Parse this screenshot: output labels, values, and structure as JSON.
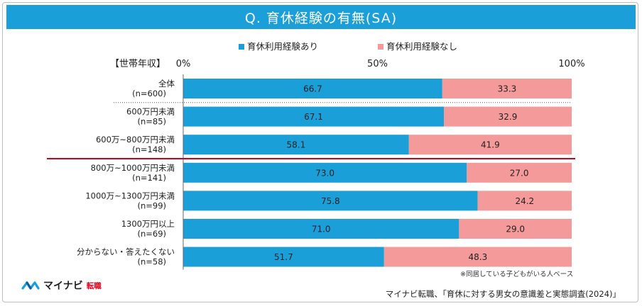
{
  "title": "Q. 育休経験の有無(SA)",
  "chart_data": {
    "type": "stacked-bar-horizontal",
    "axis_label": "【世帯年収】",
    "ticks": [
      "0%",
      "50%",
      "100%"
    ],
    "xlim": [
      0,
      100
    ],
    "legend": [
      {
        "name": "育休利用経験あり",
        "color": "#1a9fd9"
      },
      {
        "name": "育休利用経験なし",
        "color": "#f59a9a"
      }
    ],
    "categories": [
      {
        "label": "全体",
        "n": "(n=600)",
        "values": [
          "66.7",
          "33.3"
        ]
      },
      {
        "label": "600万円未満",
        "n": "(n=85)",
        "values": [
          "67.1",
          "32.9"
        ]
      },
      {
        "label": "600万~800万円未満",
        "n": "(n=148)",
        "values": [
          "58.1",
          "41.9"
        ]
      },
      {
        "label": "800万~1000万円未満",
        "n": "(n=141)",
        "values": [
          "73.0",
          "27.0"
        ]
      },
      {
        "label": "1000万~1300万円未満",
        "n": "(n=99)",
        "values": [
          "75.8",
          "24.2"
        ]
      },
      {
        "label": "1300万円以上",
        "n": "(n=69)",
        "values": [
          "71.0",
          "29.0"
        ]
      },
      {
        "label": "分からない・答えたくない",
        "n": "(n=58)",
        "values": [
          "51.7",
          "48.3"
        ]
      }
    ]
  },
  "footnote": "※同居している子どもがいる人ベース",
  "source": "マイナビ転職、「育休に対する男女の意識差と実態調査(2024)」",
  "logo": {
    "name": "マイナビ",
    "sub": "転職"
  }
}
